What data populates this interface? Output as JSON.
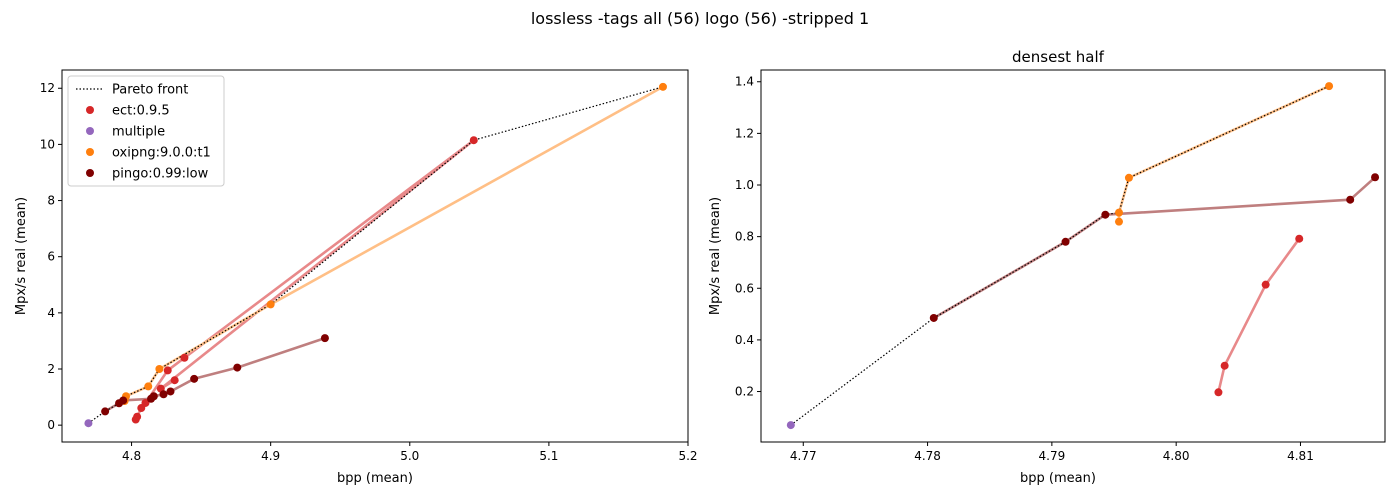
{
  "figure": {
    "suptitle": "lossless -tags all (56) logo (56) -stripped 1"
  },
  "colors": {
    "ect": "#d62728",
    "multiple": "#9467bd",
    "oxipng": "#ff7f0e",
    "pingo": "#800000",
    "ect_line": "#e8898a",
    "oxipng_line": "#ffbf86",
    "pingo_line": "#bf7f7f"
  },
  "chart_data": [
    {
      "type": "scatter",
      "title": "",
      "xlabel": "bpp (mean)",
      "ylabel": "Mpx/s real (mean)",
      "xlim": [
        4.75,
        5.2
      ],
      "ylim": [
        -0.6,
        12.65
      ],
      "xticks": [
        "4.8",
        "4.9",
        "5.0",
        "5.1",
        "5.2"
      ],
      "yticks": [
        "0",
        "2",
        "4",
        "6",
        "8",
        "10",
        "12"
      ],
      "grid": false,
      "legend_position": "top-left",
      "legend": [
        {
          "label": "Pareto front",
          "kind": "line"
        },
        {
          "label": "ect:0.9.5",
          "kind": "marker",
          "series": "ect"
        },
        {
          "label": "multiple",
          "kind": "marker",
          "series": "multiple"
        },
        {
          "label": "oxipng:9.0.0:t1",
          "kind": "marker",
          "series": "oxipng"
        },
        {
          "label": "pingo:0.99:low",
          "kind": "marker",
          "series": "pingo"
        }
      ],
      "pareto": [
        [
          4.769,
          0.07
        ],
        [
          4.781,
          0.49
        ],
        [
          4.791,
          0.78
        ],
        [
          4.794,
          0.88
        ],
        [
          4.795,
          0.89
        ],
        [
          4.796,
          1.03
        ],
        [
          4.812,
          1.38
        ],
        [
          4.82,
          2.0
        ],
        [
          4.9,
          4.3
        ],
        [
          5.046,
          10.15
        ],
        [
          5.182,
          12.05
        ]
      ],
      "series": [
        {
          "name": "ect:0.9.5",
          "key": "ect",
          "line": true,
          "points": [
            [
              4.803,
              0.2
            ],
            [
              4.804,
              0.3
            ],
            [
              4.807,
              0.61
            ],
            [
              4.81,
              0.79
            ],
            [
              4.826,
              1.95
            ],
            [
              4.838,
              2.4
            ],
            [
              5.046,
              10.15
            ],
            [
              4.821,
              1.3
            ],
            [
              4.831,
              1.6
            ]
          ]
        },
        {
          "name": "multiple",
          "key": "multiple",
          "line": false,
          "points": [
            [
              4.769,
              0.07
            ]
          ]
        },
        {
          "name": "oxipng:9.0.0:t1",
          "key": "oxipng",
          "line": true,
          "points": [
            [
              4.795,
              0.86
            ],
            [
              4.795,
              0.89
            ],
            [
              4.796,
              1.03
            ],
            [
              4.812,
              1.38
            ],
            [
              4.82,
              2.0
            ],
            [
              4.9,
              4.3
            ],
            [
              5.182,
              12.05
            ]
          ]
        },
        {
          "name": "pingo:0.99:low",
          "key": "pingo",
          "line": true,
          "points": [
            [
              4.781,
              0.49
            ],
            [
              4.791,
              0.78
            ],
            [
              4.794,
              0.88
            ],
            [
              4.814,
              0.94
            ],
            [
              4.816,
              1.03
            ],
            [
              4.823,
              1.1
            ],
            [
              4.828,
              1.2
            ],
            [
              4.845,
              1.65
            ],
            [
              4.876,
              2.05
            ],
            [
              4.939,
              3.1
            ]
          ]
        }
      ]
    },
    {
      "type": "scatter",
      "title": "densest half",
      "xlabel": "bpp (mean)",
      "ylabel": "Mpx/s real (mean)",
      "xlim": [
        4.7666,
        4.8168
      ],
      "ylim": [
        0.0045,
        1.4455
      ],
      "xticks": [
        "4.77",
        "4.78",
        "4.79",
        "4.80",
        "4.81"
      ],
      "yticks": [
        "0.2",
        "0.4",
        "0.6",
        "0.8",
        "1.0",
        "1.2",
        "1.4"
      ],
      "grid": false,
      "pareto": [
        [
          4.769,
          0.07
        ],
        [
          4.7805,
          0.485
        ],
        [
          4.7911,
          0.78
        ],
        [
          4.7943,
          0.885
        ],
        [
          4.7954,
          0.893
        ],
        [
          4.7962,
          1.028
        ],
        [
          4.8123,
          1.383
        ]
      ],
      "series": [
        {
          "name": "ect:0.9.5",
          "key": "ect",
          "line": true,
          "points": [
            [
              4.8034,
              0.197
            ],
            [
              4.8039,
              0.3
            ],
            [
              4.8072,
              0.614
            ],
            [
              4.8099,
              0.792
            ]
          ]
        },
        {
          "name": "multiple",
          "key": "multiple",
          "line": false,
          "points": [
            [
              4.769,
              0.07
            ]
          ]
        },
        {
          "name": "oxipng:9.0.0:t1",
          "key": "oxipng",
          "line": true,
          "points": [
            [
              4.7954,
              0.858
            ],
            [
              4.7954,
              0.893
            ],
            [
              4.7962,
              1.028
            ],
            [
              4.8123,
              1.383
            ]
          ]
        },
        {
          "name": "pingo:0.99:low",
          "key": "pingo",
          "line": true,
          "points": [
            [
              4.7805,
              0.485
            ],
            [
              4.7911,
              0.78
            ],
            [
              4.7943,
              0.885
            ],
            [
              4.814,
              0.943
            ],
            [
              4.816,
              1.03
            ]
          ]
        }
      ]
    }
  ]
}
